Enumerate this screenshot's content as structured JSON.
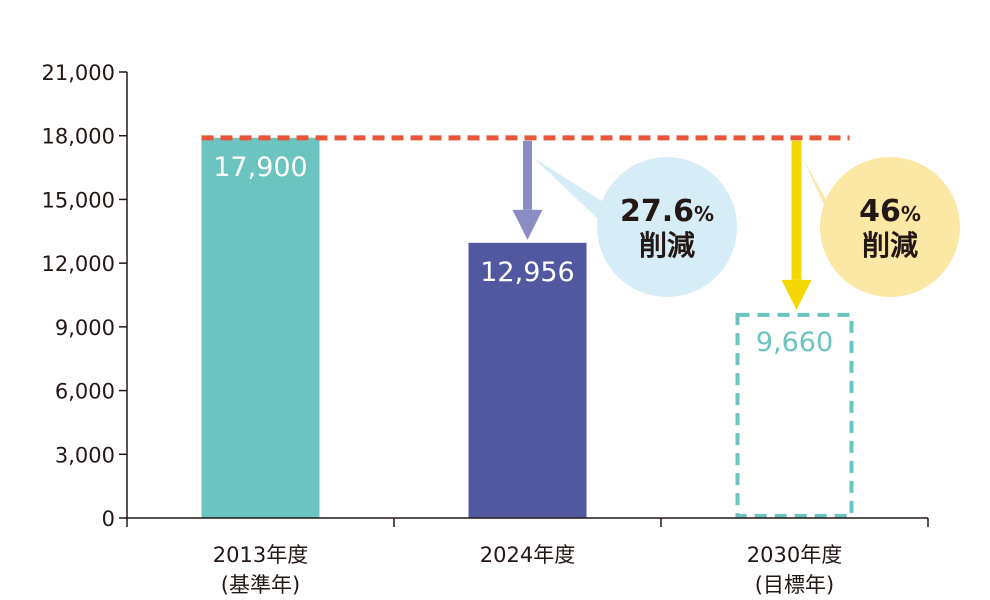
{
  "chart_data": {
    "type": "bar",
    "categories": [
      {
        "line1": "2013年度",
        "line2": "(基準年)"
      },
      {
        "line1": "2024年度",
        "line2": ""
      },
      {
        "line1": "2030年度",
        "line2": "(目標年)"
      }
    ],
    "values": [
      17900,
      12956,
      9660
    ],
    "value_labels": [
      "17,900",
      "12,956",
      "9,660"
    ],
    "bar_styles": [
      "solid",
      "solid",
      "dashed-outline"
    ],
    "colors": {
      "bar_2013": "#6cc4c0",
      "bar_2024": "#5258a0",
      "bar_2030_outline": "#6cc4c0",
      "reference_line": "#e8553a",
      "arrow_2024": "#8c8cc4",
      "arrow_2030": "#f5d800",
      "bubble_2024": "#d6ecf6",
      "bubble_2030": "#fbe8a4",
      "axis": "#231815"
    },
    "ylim": [
      0,
      21000
    ],
    "yticks": [
      0,
      3000,
      6000,
      9000,
      12000,
      15000,
      18000,
      21000
    ],
    "ytick_labels": [
      "0",
      "3,000",
      "6,000",
      "9,000",
      "12,000",
      "15,000",
      "18,000",
      "21,000"
    ],
    "reference_line_value": 17900,
    "annotations": [
      {
        "target_index": 1,
        "pct": "27.6",
        "pct_sign": "%",
        "word": "削減"
      },
      {
        "target_index": 2,
        "pct": "46",
        "pct_sign": "%",
        "word": "削減"
      }
    ],
    "title": "",
    "xlabel": "",
    "ylabel": ""
  }
}
